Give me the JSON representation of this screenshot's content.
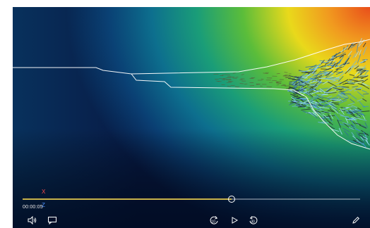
{
  "player": {
    "time_label": "00:00:05",
    "progress": 0.62,
    "axis_x_label": "X",
    "axis_z_label": "Z"
  },
  "controls": {
    "volume": "volume-icon",
    "captions": "captions-icon",
    "rewind": "rewind-10-icon",
    "rewind_label": "10",
    "play": "play-icon",
    "forward": "forward-30-icon",
    "forward_label": "30",
    "edit": "pencil-icon"
  },
  "colors": {
    "progress_fill": "#c9b24a",
    "axis_x": "#ff4a4a",
    "axis_z": "#4a90ff"
  }
}
